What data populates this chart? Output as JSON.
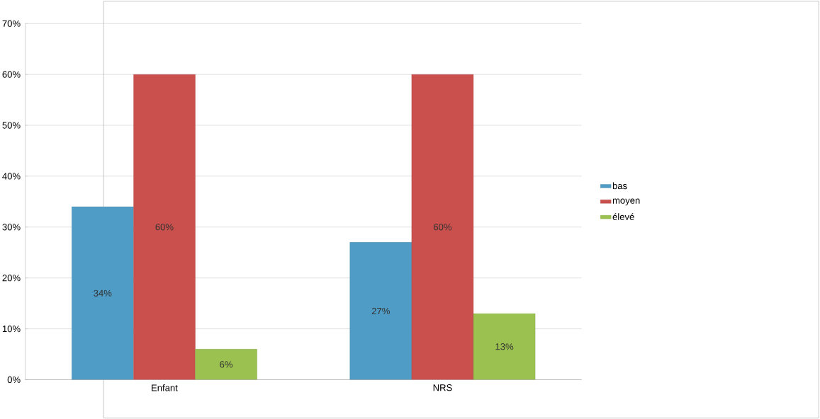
{
  "chart_data": {
    "type": "bar",
    "categories": [
      "Enfant",
      "NRS"
    ],
    "series": [
      {
        "name": "bas",
        "color": "#4f9cc6",
        "values": [
          34,
          27
        ],
        "value_labels": [
          "34%",
          "27%"
        ]
      },
      {
        "name": "moyen",
        "color": "#c9504c",
        "values": [
          60,
          60
        ],
        "value_labels": [
          "60%",
          "60%"
        ]
      },
      {
        "name": "élevé",
        "color": "#9bc150",
        "values": [
          6,
          13
        ],
        "value_labels": [
          "6%",
          "13%"
        ]
      }
    ],
    "ylim": [
      0,
      70
    ],
    "yticks": [
      {
        "value": 0,
        "label": "0%"
      },
      {
        "value": 10,
        "label": "10%"
      },
      {
        "value": 20,
        "label": "20%"
      },
      {
        "value": 30,
        "label": "30%"
      },
      {
        "value": 40,
        "label": "40%"
      },
      {
        "value": 50,
        "label": "50%"
      },
      {
        "value": 60,
        "label": "60%"
      },
      {
        "value": 70,
        "label": "70%"
      }
    ],
    "grid": "y",
    "legend": "right"
  }
}
